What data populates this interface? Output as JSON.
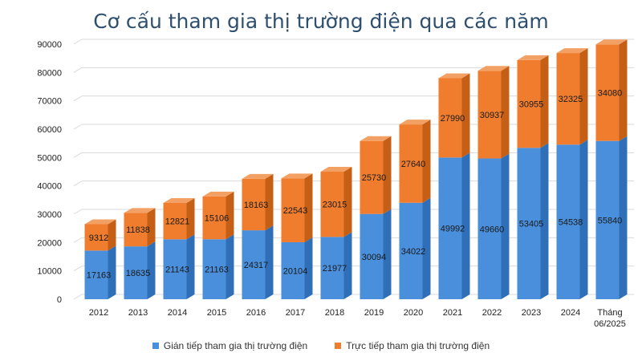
{
  "colors": {
    "title": "#2f4f6f",
    "series": [
      "#4a8fdb",
      "#ef7d2d"
    ],
    "series_side": [
      "#2f6fb8",
      "#c45f15"
    ],
    "series_top": [
      "#7ab0ea",
      "#f3a064"
    ],
    "grid": "#d9d9d9",
    "axis_text": "#222222"
  },
  "chart_data": {
    "type": "bar",
    "stacked": true,
    "title": "Cơ cấu tham gia thị trường điện qua các năm",
    "categories": [
      "2012",
      "2013",
      "2014",
      "2015",
      "2016",
      "2017",
      "2018",
      "2019",
      "2020",
      "2021",
      "2022",
      "2023",
      "2024",
      "Tháng 06/2025"
    ],
    "series": [
      {
        "name": "Gián tiếp tham gia thị trường điện",
        "values": [
          17163,
          18635,
          21143,
          21163,
          24317,
          20104,
          21977,
          30094,
          34022,
          49992,
          49660,
          53405,
          54538,
          55840
        ]
      },
      {
        "name": "Trực tiếp tham gia thị trường điện",
        "values": [
          9312,
          11838,
          12821,
          15106,
          18163,
          22543,
          23015,
          25730,
          27640,
          27990,
          30937,
          30955,
          32325,
          34080
        ]
      }
    ],
    "y_ticks": [
      0,
      10000,
      20000,
      30000,
      40000,
      50000,
      60000,
      70000,
      80000,
      90000
    ],
    "ylim": [
      0,
      90000
    ],
    "grid": true,
    "legend_position": "bottom"
  }
}
